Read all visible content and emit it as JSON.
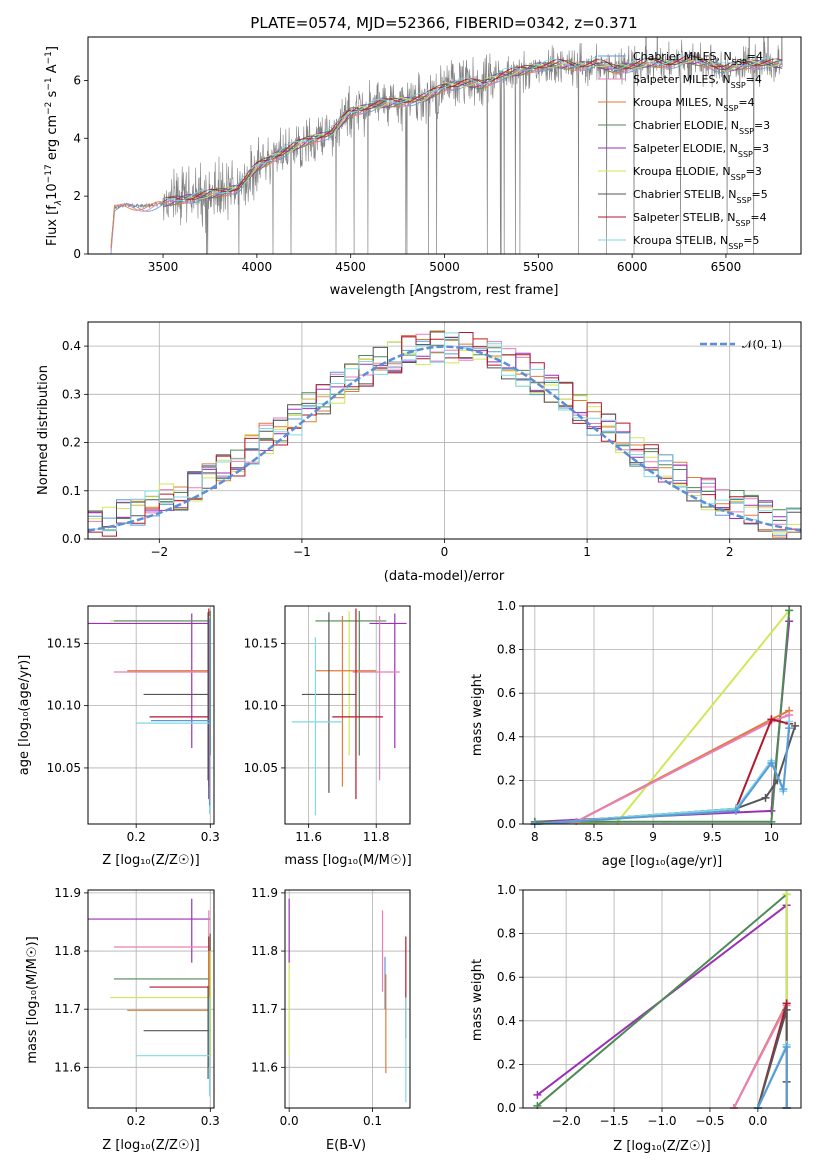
{
  "chart_data": [
    {
      "id": "spectrum",
      "type": "line",
      "title": "PLATE=0574, MJD=52366, FIBERID=0342, z=0.371",
      "xlabel": "wavelength [Angstrom, rest frame]",
      "ylabel": "Flux [f_λ 10^-17 erg cm^-2 s^-1 A^-1]",
      "xlim": [
        3100,
        6900
      ],
      "ylim": [
        0,
        7.5
      ],
      "xticks": [
        3500,
        4000,
        4500,
        5000,
        5500,
        6000,
        6500
      ],
      "yticks": [
        0,
        2,
        4,
        6
      ],
      "grid": false,
      "legend_position": "upper-right",
      "observed_color": "#808080",
      "legend": [
        {
          "label": "Chabrier MILES, N_SSP=4",
          "base": "Chabrier MILES, N",
          "sub": "SSP",
          "post": "=4",
          "color": "#5b9bd5"
        },
        {
          "label": "Salpeter MILES, N_SSP=4",
          "base": "Salpeter MILES, N",
          "sub": "SSP",
          "post": "=4",
          "color": "#e87fb8"
        },
        {
          "label": "Kroupa MILES, N_SSP=4",
          "base": "Kroupa MILES, N",
          "sub": "SSP",
          "post": "=4",
          "color": "#e07b39"
        },
        {
          "label": "Chabrier ELODIE, N_SSP=3",
          "base": "Chabrier ELODIE, N",
          "sub": "SSP",
          "post": "=3",
          "color": "#4f8a56"
        },
        {
          "label": "Salpeter ELODIE, N_SSP=3",
          "base": "Salpeter ELODIE, N",
          "sub": "SSP",
          "post": "=3",
          "color": "#9b30b6"
        },
        {
          "label": "Kroupa ELODIE, N_SSP=3",
          "base": "Kroupa ELODIE, N",
          "sub": "SSP",
          "post": "=3",
          "color": "#cfe85a"
        },
        {
          "label": "Chabrier STELIB, N_SSP=5",
          "base": "Chabrier STELIB, N",
          "sub": "SSP",
          "post": "=5",
          "color": "#555555"
        },
        {
          "label": "Salpeter STELIB, N_SSP=4",
          "base": "Salpeter STELIB, N",
          "sub": "SSP",
          "post": "=4",
          "color": "#b2182b"
        },
        {
          "label": "Kroupa STELIB, N_SSP=5",
          "base": "Kroupa STELIB, N",
          "sub": "SSP",
          "post": "=5",
          "color": "#7fd9e6"
        }
      ],
      "continuum": {
        "x": [
          3220,
          3240,
          3300,
          3400,
          3500,
          3600,
          3700,
          3800,
          3900,
          4000,
          4100,
          4200,
          4300,
          4400,
          4500,
          4600,
          4700,
          4800,
          4900,
          5000,
          5100,
          5200,
          5300,
          5400,
          5500,
          5600,
          5700,
          5800,
          5900,
          6000,
          6100,
          6200,
          6300,
          6400,
          6500,
          6600,
          6700,
          6800
        ],
        "y": [
          0.0,
          1.6,
          1.7,
          1.65,
          1.75,
          1.9,
          2.0,
          2.1,
          2.3,
          3.0,
          3.4,
          3.7,
          4.0,
          4.2,
          4.9,
          5.1,
          5.2,
          5.3,
          5.4,
          5.8,
          5.9,
          5.85,
          6.2,
          6.3,
          6.5,
          6.55,
          6.5,
          6.6,
          6.4,
          6.5,
          6.6,
          6.6,
          6.7,
          6.6,
          6.4,
          6.55,
          6.6,
          6.55
        ]
      }
    },
    {
      "id": "residuals",
      "type": "line",
      "xlabel": "(data-model)/error",
      "ylabel": "Normed distribution",
      "xlim": [
        -2.5,
        2.5
      ],
      "ylim": [
        0,
        0.45
      ],
      "xticks": [
        -2,
        -1,
        0,
        1,
        2
      ],
      "xtick_labels": [
        "−2",
        "−1",
        "0",
        "1",
        "2"
      ],
      "yticks": [
        0.0,
        0.1,
        0.2,
        0.3,
        0.4
      ],
      "grid": true,
      "legend": [
        {
          "label": "𝒩(0, 1)",
          "color": "#5b8ed6",
          "style": "dashed"
        }
      ],
      "bin_width": 0.1
    },
    {
      "id": "age-vs-Z",
      "type": "scatter",
      "xlabel": "Z [log₁₀(Z/Z☉)]",
      "ylabel": "age  [log₁₀(age/yr)]",
      "xlim": [
        0.135,
        0.305
      ],
      "ylim": [
        10.005,
        10.18
      ],
      "xticks": [
        0.2,
        0.3
      ],
      "yticks": [
        10.05,
        10.1,
        10.15
      ],
      "grid": true,
      "series": [
        {
          "color": "#9b30b6",
          "x": 0.275,
          "y": 10.166,
          "xerr": [
            0.135,
            0.3
          ],
          "yerr": [
            10.066,
            10.174
          ]
        },
        {
          "color": "#cfe85a",
          "x": 0.3,
          "y": 10.168,
          "xerr": [
            0.165,
            0.3
          ],
          "yerr": [
            10.06,
            10.176
          ]
        },
        {
          "color": "#4f8a56",
          "x": 0.3,
          "y": 10.168,
          "xerr": [
            0.17,
            0.3
          ],
          "yerr": [
            10.06,
            10.176
          ]
        },
        {
          "color": "#e07b39",
          "x": 0.298,
          "y": 10.128,
          "xerr": [
            0.188,
            0.3
          ],
          "yerr": [
            10.035,
            10.172
          ]
        },
        {
          "color": "#e87fb8",
          "x": 0.298,
          "y": 10.127,
          "xerr": [
            0.17,
            0.3
          ],
          "yerr": [
            10.035,
            10.172
          ]
        },
        {
          "color": "#555555",
          "x": 0.297,
          "y": 10.109,
          "xerr": [
            0.21,
            0.3
          ],
          "yerr": [
            10.04,
            10.175
          ]
        },
        {
          "color": "#b2182b",
          "x": 0.298,
          "y": 10.091,
          "xerr": [
            0.218,
            0.3
          ],
          "yerr": [
            10.025,
            10.178
          ]
        },
        {
          "color": "#7fd9e6",
          "x": 0.299,
          "y": 10.086,
          "xerr": [
            0.2,
            0.3
          ],
          "yerr": [
            10.013,
            10.172
          ]
        },
        {
          "color": "#5b9bd5",
          "x": 0.299,
          "y": 10.088,
          "xerr": [
            0.22,
            0.3
          ],
          "yerr": [
            10.02,
            10.17
          ]
        }
      ]
    },
    {
      "id": "age-vs-mass",
      "type": "scatter",
      "xlabel": "mass [log₁₀(M/M☉)]",
      "ylabel": "",
      "xlim": [
        11.53,
        11.9
      ],
      "ylim": [
        10.005,
        10.18
      ],
      "xticks": [
        11.6,
        11.8
      ],
      "yticks": [
        10.05,
        10.1,
        10.15
      ],
      "grid": true,
      "series": [
        {
          "color": "#9b30b6",
          "x": 11.855,
          "y": 10.166,
          "xerr": [
            11.78,
            11.89
          ],
          "yerr": [
            10.066,
            10.174
          ]
        },
        {
          "color": "#cfe85a",
          "x": 11.72,
          "y": 10.168,
          "xerr": [
            11.62,
            11.8
          ],
          "yerr": [
            10.06,
            10.176
          ]
        },
        {
          "color": "#4f8a56",
          "x": 11.75,
          "y": 10.168,
          "xerr": [
            11.62,
            11.83
          ],
          "yerr": [
            10.06,
            10.176
          ]
        },
        {
          "color": "#e07b39",
          "x": 11.7,
          "y": 10.128,
          "xerr": [
            11.62,
            11.8
          ],
          "yerr": [
            10.035,
            10.172
          ]
        },
        {
          "color": "#e87fb8",
          "x": 11.81,
          "y": 10.127,
          "xerr": [
            11.73,
            11.87
          ],
          "yerr": [
            10.04,
            10.172
          ]
        },
        {
          "color": "#555555",
          "x": 11.66,
          "y": 10.109,
          "xerr": [
            11.58,
            11.74
          ],
          "yerr": [
            10.03,
            10.175
          ]
        },
        {
          "color": "#b2182b",
          "x": 11.74,
          "y": 10.091,
          "xerr": [
            11.67,
            11.82
          ],
          "yerr": [
            10.025,
            10.178
          ]
        },
        {
          "color": "#7fd9e6",
          "x": 11.62,
          "y": 10.087,
          "xerr": [
            11.55,
            11.7
          ],
          "yerr": [
            10.012,
            10.155
          ]
        }
      ]
    },
    {
      "id": "weight-vs-age",
      "type": "line",
      "xlabel": "age  [log₁₀(age/yr)]",
      "ylabel": "mass weight",
      "xlim": [
        7.9,
        10.25
      ],
      "ylim": [
        0,
        1.0
      ],
      "xticks": [
        8.0,
        8.5,
        9.0,
        9.5,
        10.0
      ],
      "yticks": [
        0.0,
        0.2,
        0.4,
        0.6,
        0.8,
        1.0
      ],
      "grid": true,
      "series": [
        {
          "color": "#cfe85a",
          "x": [
            8.0,
            8.7,
            10.15
          ],
          "y": [
            0.0,
            0.01,
            0.98
          ]
        },
        {
          "color": "#9b30b6",
          "x": [
            8.0,
            10.0,
            10.15
          ],
          "y": [
            0.01,
            0.06,
            0.93
          ]
        },
        {
          "color": "#4f8a56",
          "x": [
            8.0,
            10.0,
            10.15
          ],
          "y": [
            0.01,
            0.01,
            0.98
          ]
        },
        {
          "color": "#e07b39",
          "x": [
            8.0,
            8.35,
            10.0,
            10.15
          ],
          "y": [
            0.0,
            0.01,
            0.48,
            0.52
          ]
        },
        {
          "color": "#e87fb8",
          "x": [
            8.0,
            8.35,
            10.0,
            10.15
          ],
          "y": [
            0.0,
            0.01,
            0.47,
            0.5
          ]
        },
        {
          "color": "#b2182b",
          "x": [
            8.0,
            9.7,
            10.0,
            10.15
          ],
          "y": [
            0.0,
            0.07,
            0.48,
            0.46
          ]
        },
        {
          "color": "#555555",
          "x": [
            8.0,
            9.7,
            9.95,
            10.05,
            10.2
          ],
          "y": [
            0.0,
            0.07,
            0.12,
            0.2,
            0.45
          ]
        },
        {
          "color": "#7fd9e6",
          "x": [
            8.0,
            9.7,
            10.0,
            10.1,
            10.15
          ],
          "y": [
            0.0,
            0.07,
            0.29,
            0.15,
            0.47
          ]
        },
        {
          "color": "#5b9bd5",
          "x": [
            8.0,
            9.7,
            10.0,
            10.1,
            10.15
          ],
          "y": [
            0.0,
            0.06,
            0.28,
            0.16,
            0.44
          ]
        }
      ]
    },
    {
      "id": "mass-vs-Z",
      "type": "scatter",
      "xlabel": "Z [log₁₀(Z/Z☉)]",
      "ylabel": "mass [log₁₀(M/M☉)]",
      "xlim": [
        0.135,
        0.305
      ],
      "ylim": [
        11.53,
        11.905
      ],
      "xticks": [
        0.2,
        0.3
      ],
      "yticks": [
        11.6,
        11.7,
        11.8,
        11.9
      ],
      "grid": true,
      "series": [
        {
          "color": "#9b30b6",
          "x": 0.275,
          "y": 11.855,
          "xerr": [
            0.135,
            0.3
          ],
          "yerr": [
            11.78,
            11.89
          ]
        },
        {
          "color": "#e87fb8",
          "x": 0.298,
          "y": 11.807,
          "xerr": [
            0.17,
            0.3
          ],
          "yerr": [
            11.73,
            11.87
          ]
        },
        {
          "color": "#4f8a56",
          "x": 0.3,
          "y": 11.752,
          "xerr": [
            0.17,
            0.3
          ],
          "yerr": [
            11.62,
            11.83
          ]
        },
        {
          "color": "#b2182b",
          "x": 0.298,
          "y": 11.738,
          "xerr": [
            0.218,
            0.3
          ],
          "yerr": [
            11.65,
            11.825
          ]
        },
        {
          "color": "#cfe85a",
          "x": 0.3,
          "y": 11.72,
          "xerr": [
            0.165,
            0.3
          ],
          "yerr": [
            11.62,
            11.8
          ]
        },
        {
          "color": "#e07b39",
          "x": 0.298,
          "y": 11.698,
          "xerr": [
            0.188,
            0.3
          ],
          "yerr": [
            11.6,
            11.8
          ]
        },
        {
          "color": "#555555",
          "x": 0.297,
          "y": 11.663,
          "xerr": [
            0.21,
            0.3
          ],
          "yerr": [
            11.58,
            11.74
          ]
        },
        {
          "color": "#7fd9e6",
          "x": 0.299,
          "y": 11.62,
          "xerr": [
            0.2,
            0.3
          ],
          "yerr": [
            11.55,
            11.72
          ]
        }
      ]
    },
    {
      "id": "mass-vs-EBV",
      "type": "scatter",
      "xlabel": "E(B-V)",
      "ylabel": "",
      "xlim": [
        -0.005,
        0.145
      ],
      "ylim": [
        11.53,
        11.905
      ],
      "xticks": [
        0.0,
        0.1
      ],
      "xtick_labels": [
        "0.0",
        "0.1"
      ],
      "yticks": [
        11.6,
        11.7,
        11.8,
        11.9
      ],
      "grid": true,
      "series": [
        {
          "color": "#9b30b6",
          "x": 0.0,
          "y": 11.855,
          "xerr": [
            0.0,
            0.0
          ],
          "yerr": [
            11.78,
            11.89
          ]
        },
        {
          "color": "#cfe85a",
          "x": 0.0,
          "y": 11.72,
          "xerr": [
            0.0,
            0.0
          ],
          "yerr": [
            11.62,
            11.78
          ]
        },
        {
          "color": "#e87fb8",
          "x": 0.112,
          "y": 11.807,
          "xerr": [
            0.112,
            0.112
          ],
          "yerr": [
            11.73,
            11.87
          ]
        },
        {
          "color": "#5b9bd5",
          "x": 0.115,
          "y": 11.74,
          "xerr": [
            0.115,
            0.115
          ],
          "yerr": [
            11.7,
            11.79
          ]
        },
        {
          "color": "#e07b39",
          "x": 0.116,
          "y": 11.698,
          "xerr": [
            0.116,
            0.116
          ],
          "yerr": [
            11.59,
            11.76
          ]
        },
        {
          "color": "#b2182b",
          "x": 0.14,
          "y": 11.738,
          "xerr": [
            0.14,
            0.14
          ],
          "yerr": [
            11.65,
            11.825
          ]
        },
        {
          "color": "#7fd9e6",
          "x": 0.14,
          "y": 11.62,
          "xerr": [
            0.14,
            0.14
          ],
          "yerr": [
            11.54,
            11.72
          ]
        }
      ]
    },
    {
      "id": "weight-vs-Z",
      "type": "line",
      "xlabel": "Z [log₁₀(Z/Z☉)]",
      "ylabel": "mass weight",
      "xlim": [
        -2.45,
        0.45
      ],
      "ylim": [
        0,
        1.0
      ],
      "xticks": [
        -2.0,
        -1.5,
        -1.0,
        -0.5,
        0.0
      ],
      "xtick_labels": [
        "−2.0",
        "−1.5",
        "−1.0",
        "−0.5",
        "0.0"
      ],
      "yticks": [
        0.0,
        0.2,
        0.4,
        0.6,
        0.8,
        1.0
      ],
      "grid": true,
      "series": [
        {
          "color": "#9b30b6",
          "x": [
            -2.3,
            0.3,
            0.3
          ],
          "y": [
            0.06,
            0.93,
            0.0
          ]
        },
        {
          "color": "#4f8a56",
          "x": [
            -2.3,
            0.3,
            0.3
          ],
          "y": [
            0.01,
            0.98,
            0.0
          ]
        },
        {
          "color": "#cfe85a",
          "x": [
            0.3,
            0.3
          ],
          "y": [
            0.0,
            0.98
          ]
        },
        {
          "color": "#e07b39",
          "x": [
            -0.25,
            0.3,
            0.3
          ],
          "y": [
            0.0,
            0.48,
            0.0
          ]
        },
        {
          "color": "#e87fb8",
          "x": [
            -0.25,
            0.3,
            0.3
          ],
          "y": [
            0.0,
            0.47,
            0.0
          ]
        },
        {
          "color": "#b2182b",
          "x": [
            0.0,
            0.3,
            0.3
          ],
          "y": [
            0.0,
            0.48,
            0.0
          ]
        },
        {
          "color": "#555555",
          "x": [
            0.0,
            0.3,
            0.3,
            0.3
          ],
          "y": [
            0.0,
            0.45,
            0.12,
            0.0
          ]
        },
        {
          "color": "#7fd9e6",
          "x": [
            0.0,
            0.3,
            0.3
          ],
          "y": [
            0.0,
            0.29,
            0.0
          ]
        },
        {
          "color": "#5b9bd5",
          "x": [
            0.0,
            0.3,
            0.3
          ],
          "y": [
            0.0,
            0.28,
            0.0
          ]
        }
      ]
    }
  ]
}
